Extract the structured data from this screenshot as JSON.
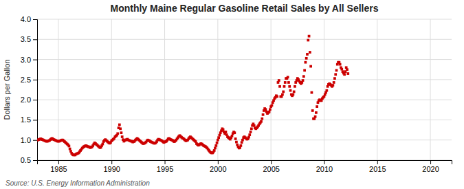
{
  "chart_data": {
    "type": "scatter",
    "title": "Monthly Maine Regular Gasoline Retail Sales by All Sellers",
    "ylabel": "Dollars per Gallon",
    "source": "Source: U.S. Energy Information Administration",
    "color": "#CC0000",
    "marker": "square",
    "grid": true,
    "xlim": [
      1983.0,
      2022.0
    ],
    "ylim": [
      0.5,
      4.0
    ],
    "xticks": [
      1985,
      1990,
      1995,
      2000,
      2005,
      2010,
      2015,
      2020
    ],
    "yticks": [
      0.5,
      {
        "value": 1.0,
        "label": "1.0"
      },
      1.5,
      {
        "value": 2.0,
        "label": "2.0"
      },
      2.5,
      {
        "value": 3.0,
        "label": "3.0"
      },
      3.5,
      {
        "value": 4.0,
        "label": "4.0"
      }
    ],
    "x": [
      1983.0,
      1983.083,
      1983.167,
      1983.25,
      1983.333,
      1983.417,
      1983.5,
      1983.583,
      1983.667,
      1983.75,
      1983.833,
      1983.917,
      1984.0,
      1984.083,
      1984.167,
      1984.25,
      1984.333,
      1984.417,
      1984.5,
      1984.583,
      1984.667,
      1984.75,
      1984.833,
      1984.917,
      1985.0,
      1985.083,
      1985.167,
      1985.25,
      1985.333,
      1985.417,
      1985.5,
      1985.583,
      1985.667,
      1985.75,
      1985.833,
      1985.917,
      1986.0,
      1986.083,
      1986.167,
      1986.25,
      1986.333,
      1986.417,
      1986.5,
      1986.583,
      1986.667,
      1986.75,
      1986.833,
      1986.917,
      1987.0,
      1987.083,
      1987.167,
      1987.25,
      1987.333,
      1987.417,
      1987.5,
      1987.583,
      1987.667,
      1987.75,
      1987.833,
      1987.917,
      1988.0,
      1988.083,
      1988.167,
      1988.25,
      1988.333,
      1988.417,
      1988.5,
      1988.583,
      1988.667,
      1988.75,
      1988.833,
      1988.917,
      1989.0,
      1989.083,
      1989.167,
      1989.25,
      1989.333,
      1989.417,
      1989.5,
      1989.583,
      1989.667,
      1989.75,
      1989.833,
      1989.917,
      1990.0,
      1990.083,
      1990.167,
      1990.25,
      1990.333,
      1990.417,
      1990.5,
      1990.583,
      1990.667,
      1990.75,
      1990.833,
      1990.917,
      1991.0,
      1991.083,
      1991.167,
      1991.25,
      1991.333,
      1991.417,
      1991.5,
      1991.583,
      1991.667,
      1991.75,
      1991.833,
      1991.917,
      1992.0,
      1992.083,
      1992.167,
      1992.25,
      1992.333,
      1992.417,
      1992.5,
      1992.583,
      1992.667,
      1992.75,
      1992.833,
      1992.917,
      1993.0,
      1993.083,
      1993.167,
      1993.25,
      1993.333,
      1993.417,
      1993.5,
      1993.583,
      1993.667,
      1993.75,
      1993.833,
      1993.917,
      1994.0,
      1994.083,
      1994.167,
      1994.25,
      1994.333,
      1994.417,
      1994.5,
      1994.583,
      1994.667,
      1994.75,
      1994.833,
      1994.917,
      1995.0,
      1995.083,
      1995.167,
      1995.25,
      1995.333,
      1995.417,
      1995.5,
      1995.583,
      1995.667,
      1995.75,
      1995.833,
      1995.917,
      1996.0,
      1996.083,
      1996.167,
      1996.25,
      1996.333,
      1996.417,
      1996.5,
      1996.583,
      1996.667,
      1996.75,
      1996.833,
      1996.917,
      1997.0,
      1997.083,
      1997.167,
      1997.25,
      1997.333,
      1997.417,
      1997.5,
      1997.583,
      1997.667,
      1997.75,
      1997.833,
      1997.917,
      1998.0,
      1998.083,
      1998.167,
      1998.25,
      1998.333,
      1998.417,
      1998.5,
      1998.583,
      1998.667,
      1998.75,
      1998.833,
      1998.917,
      1999.0,
      1999.083,
      1999.167,
      1999.25,
      1999.333,
      1999.417,
      1999.5,
      1999.583,
      1999.667,
      1999.75,
      1999.833,
      1999.917,
      2000.0,
      2000.083,
      2000.167,
      2000.25,
      2000.333,
      2000.417,
      2000.5,
      2000.583,
      2000.667,
      2000.75,
      2000.833,
      2000.917,
      2001.0,
      2001.083,
      2001.167,
      2001.25,
      2001.333,
      2001.417,
      2001.5,
      2001.583,
      2001.667,
      2001.75,
      2001.833,
      2001.917,
      2002.0,
      2002.083,
      2002.167,
      2002.25,
      2002.333,
      2002.417,
      2002.5,
      2002.583,
      2002.667,
      2002.75,
      2002.833,
      2002.917,
      2003.0,
      2003.083,
      2003.167,
      2003.25,
      2003.333,
      2003.417,
      2003.5,
      2003.583,
      2003.667,
      2003.75,
      2003.833,
      2003.917,
      2004.0,
      2004.083,
      2004.167,
      2004.25,
      2004.333,
      2004.417,
      2004.5,
      2004.583,
      2004.667,
      2004.75,
      2004.833,
      2004.917,
      2005.0,
      2005.083,
      2005.167,
      2005.25,
      2005.333,
      2005.417,
      2005.5,
      2005.583,
      2005.667,
      2005.75,
      2005.833,
      2005.917,
      2006.0,
      2006.083,
      2006.167,
      2006.25,
      2006.333,
      2006.417,
      2006.5,
      2006.583,
      2006.667,
      2006.75,
      2006.833,
      2006.917,
      2007.0,
      2007.083,
      2007.167,
      2007.25,
      2007.333,
      2007.417,
      2007.5,
      2007.583,
      2007.667,
      2007.75,
      2007.833,
      2007.917,
      2008.0,
      2008.083,
      2008.167,
      2008.25,
      2008.333,
      2008.417,
      2008.5,
      2008.583,
      2008.667,
      2008.75,
      2008.833,
      2008.917,
      2009.0,
      2009.083,
      2009.167,
      2009.25,
      2009.333,
      2009.417,
      2009.5,
      2009.583,
      2009.667,
      2009.75,
      2009.833,
      2009.917,
      2010.0,
      2010.083,
      2010.167,
      2010.25,
      2010.333,
      2010.417,
      2010.5,
      2010.583,
      2010.667,
      2010.75,
      2010.833,
      2010.917,
      2011.0,
      2011.083,
      2011.167,
      2011.25,
      2011.333,
      2011.417,
      2011.5,
      2011.583,
      2011.667,
      2011.75,
      2011.833,
      2011.917,
      2012.0,
      2012.083,
      2012.167,
      2012.25
    ],
    "values": [
      1.0,
      1.0,
      1.01,
      1.02,
      1.03,
      1.02,
      1.01,
      1.0,
      0.99,
      0.98,
      0.97,
      0.97,
      0.97,
      0.98,
      0.99,
      1.01,
      1.03,
      1.04,
      1.02,
      1.01,
      1.0,
      0.99,
      0.98,
      0.97,
      0.97,
      0.97,
      0.98,
      0.99,
      1.0,
      1.0,
      0.98,
      0.96,
      0.94,
      0.92,
      0.9,
      0.88,
      0.85,
      0.78,
      0.72,
      0.67,
      0.64,
      0.63,
      0.63,
      0.63,
      0.65,
      0.66,
      0.67,
      0.68,
      0.71,
      0.74,
      0.77,
      0.8,
      0.82,
      0.84,
      0.85,
      0.86,
      0.85,
      0.84,
      0.83,
      0.83,
      0.81,
      0.82,
      0.83,
      0.86,
      0.9,
      0.93,
      0.91,
      0.89,
      0.87,
      0.85,
      0.83,
      0.81,
      0.82,
      0.86,
      0.9,
      0.96,
      0.99,
      1.01,
      0.99,
      0.97,
      0.95,
      0.93,
      0.92,
      0.94,
      0.98,
      1.0,
      1.02,
      1.04,
      1.08,
      1.1,
      1.12,
      1.16,
      1.3,
      1.38,
      1.28,
      1.18,
      1.08,
      1.01,
      0.97,
      0.99,
      1.0,
      1.01,
      1.02,
      1.0,
      0.99,
      0.98,
      0.97,
      0.97,
      0.95,
      0.96,
      0.97,
      1.0,
      1.02,
      1.04,
      1.02,
      1.0,
      0.98,
      0.96,
      0.94,
      0.92,
      0.91,
      0.92,
      0.93,
      0.95,
      0.98,
      1.0,
      0.99,
      0.98,
      0.96,
      0.95,
      0.94,
      0.93,
      0.92,
      0.92,
      0.93,
      0.96,
      1.0,
      1.02,
      1.01,
      1.0,
      0.99,
      0.98,
      0.96,
      0.94,
      0.95,
      0.96,
      0.97,
      1.0,
      1.03,
      1.04,
      1.02,
      1.01,
      1.0,
      0.99,
      0.97,
      0.96,
      0.98,
      1.0,
      1.03,
      1.06,
      1.09,
      1.11,
      1.09,
      1.07,
      1.05,
      1.04,
      1.02,
      1.0,
      0.98,
      0.99,
      1.0,
      1.03,
      1.06,
      1.08,
      1.06,
      1.04,
      1.02,
      1.0,
      0.98,
      0.96,
      0.91,
      0.89,
      0.87,
      0.88,
      0.9,
      0.91,
      0.9,
      0.88,
      0.86,
      0.85,
      0.84,
      0.82,
      0.8,
      0.77,
      0.74,
      0.71,
      0.69,
      0.68,
      0.68,
      0.7,
      0.74,
      0.8,
      0.86,
      0.93,
      1.0,
      1.06,
      1.12,
      1.18,
      1.23,
      1.28,
      1.26,
      1.2,
      1.16,
      1.2,
      1.13,
      1.08,
      1.06,
      1.04,
      1.02,
      1.06,
      1.1,
      1.16,
      1.2,
      1.18,
      1.03,
      0.95,
      0.88,
      0.83,
      0.8,
      0.81,
      0.86,
      0.94,
      1.0,
      1.06,
      1.08,
      1.06,
      1.04,
      1.02,
      1.03,
      1.07,
      1.13,
      1.2,
      1.28,
      1.36,
      1.4,
      1.36,
      1.3,
      1.28,
      1.3,
      1.33,
      1.36,
      1.4,
      1.43,
      1.46,
      1.53,
      1.63,
      1.73,
      1.78,
      1.76,
      1.7,
      1.66,
      1.68,
      1.7,
      1.76,
      1.83,
      1.86,
      1.93,
      1.98,
      2.03,
      2.06,
      2.1,
      2.08,
      2.43,
      2.48,
      2.33,
      2.08,
      2.08,
      2.13,
      2.2,
      2.33,
      2.43,
      2.53,
      2.53,
      2.56,
      2.43,
      2.33,
      2.23,
      2.13,
      2.1,
      2.13,
      2.2,
      2.33,
      2.43,
      2.48,
      2.53,
      2.5,
      2.46,
      2.43,
      2.4,
      2.43,
      2.48,
      2.58,
      2.73,
      2.93,
      3.03,
      3.13,
      3.48,
      3.58,
      3.18,
      2.83,
      2.18,
      1.73,
      1.53,
      1.53,
      1.58,
      1.68,
      1.83,
      1.93,
      1.98,
      2.0,
      1.98,
      1.98,
      2.03,
      2.06,
      2.08,
      2.13,
      2.18,
      2.23,
      2.33,
      2.38,
      2.4,
      2.38,
      2.36,
      2.33,
      2.36,
      2.43,
      2.53,
      2.63,
      2.73,
      2.88,
      2.93,
      2.93,
      2.88,
      2.8,
      2.76,
      2.7,
      2.66,
      2.63,
      2.7,
      2.8,
      2.75,
      2.65
    ]
  }
}
